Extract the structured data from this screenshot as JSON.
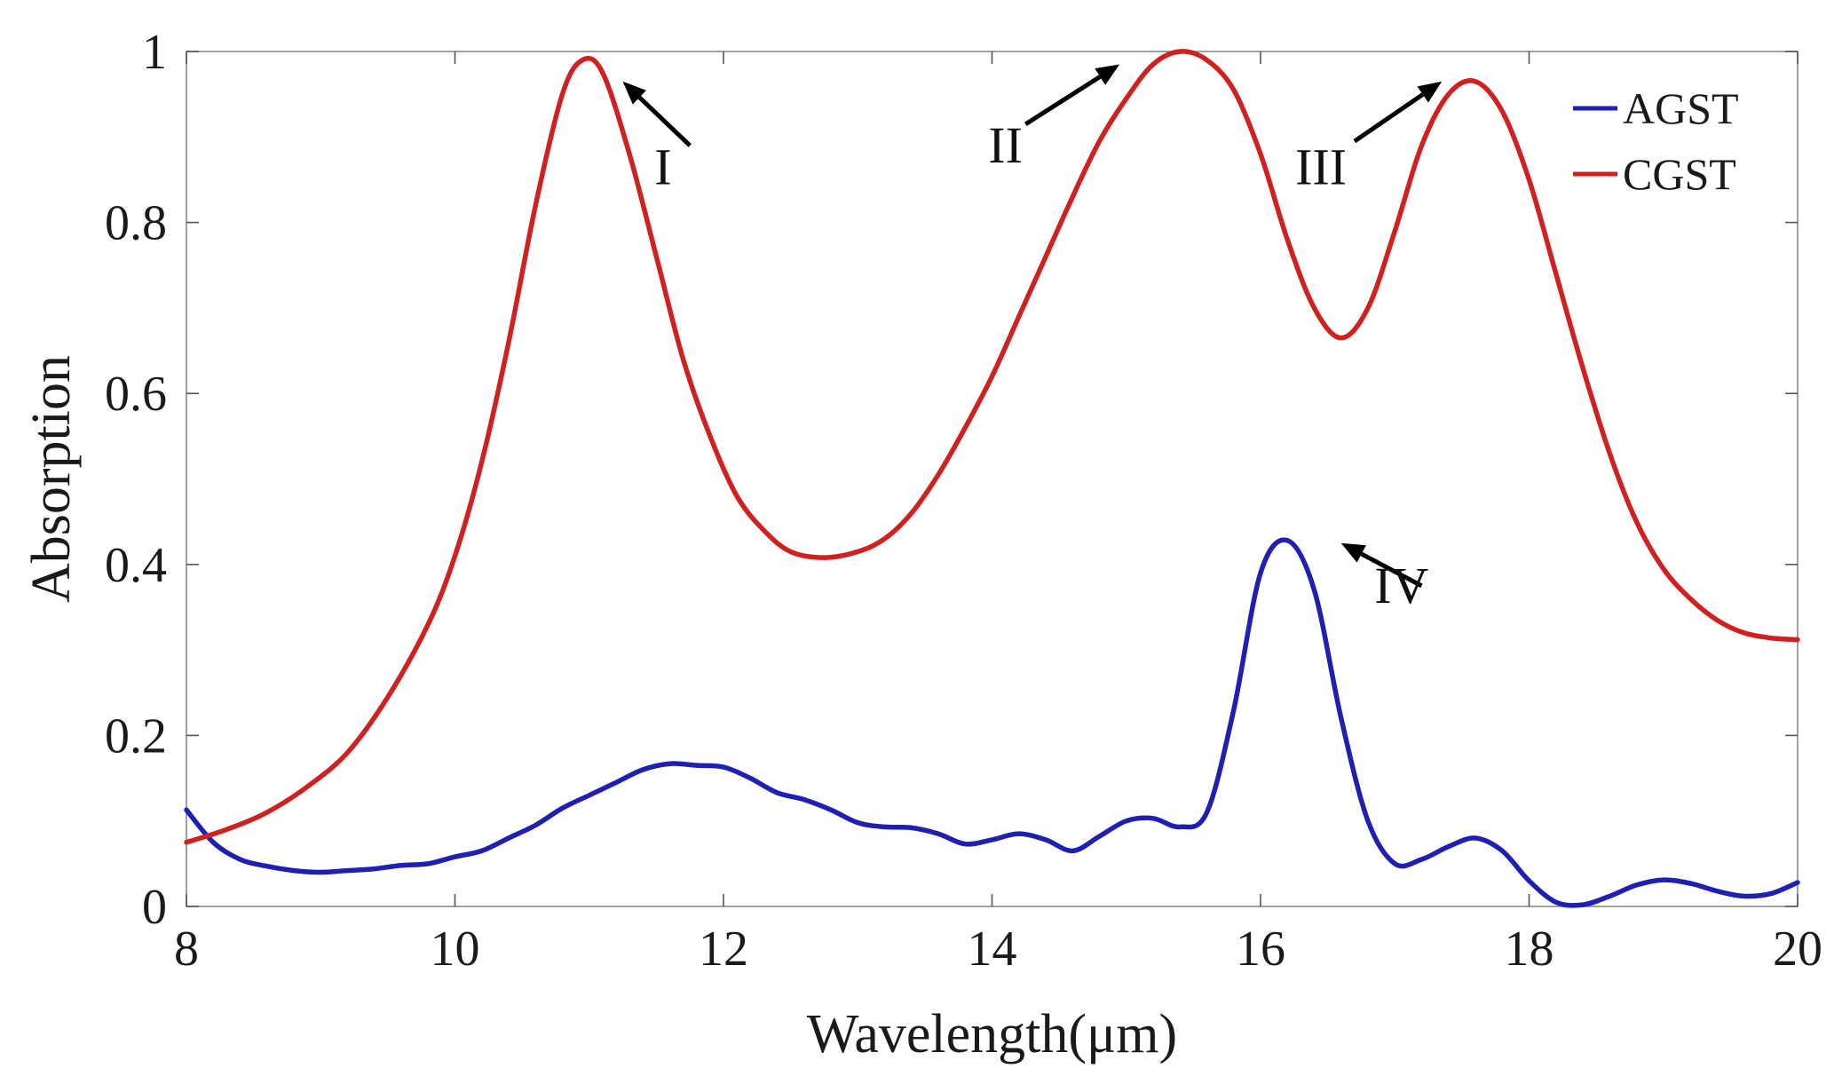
{
  "chart_data": {
    "type": "line",
    "title": "",
    "xlabel": "Wavelength(μm)",
    "ylabel": "Absorption",
    "xlim": [
      8,
      20
    ],
    "ylim": [
      0,
      1
    ],
    "x_ticks": [
      8,
      10,
      12,
      14,
      16,
      18,
      20
    ],
    "x_tick_labels": [
      "8",
      "10",
      "12",
      "14",
      "16",
      "18",
      "20"
    ],
    "y_ticks": [
      0,
      0.2,
      0.4,
      0.6,
      0.8,
      1
    ],
    "y_tick_labels": [
      "0",
      "0.2",
      "0.4",
      "0.6",
      "0.8",
      "1"
    ],
    "grid": false,
    "legend_position": "top-right",
    "series": [
      {
        "name": "AGST",
        "color": "#1f1fb4",
        "points": [
          [
            8.0,
            0.113
          ],
          [
            8.2,
            0.075
          ],
          [
            8.4,
            0.055
          ],
          [
            8.6,
            0.047
          ],
          [
            8.8,
            0.042
          ],
          [
            9.0,
            0.04
          ],
          [
            9.2,
            0.042
          ],
          [
            9.4,
            0.044
          ],
          [
            9.6,
            0.048
          ],
          [
            9.8,
            0.05
          ],
          [
            10.0,
            0.058
          ],
          [
            10.2,
            0.065
          ],
          [
            10.4,
            0.08
          ],
          [
            10.6,
            0.095
          ],
          [
            10.8,
            0.115
          ],
          [
            11.0,
            0.13
          ],
          [
            11.2,
            0.145
          ],
          [
            11.4,
            0.16
          ],
          [
            11.6,
            0.167
          ],
          [
            11.8,
            0.165
          ],
          [
            12.0,
            0.163
          ],
          [
            12.2,
            0.15
          ],
          [
            12.4,
            0.133
          ],
          [
            12.6,
            0.125
          ],
          [
            12.8,
            0.113
          ],
          [
            13.0,
            0.098
          ],
          [
            13.2,
            0.093
          ],
          [
            13.4,
            0.092
          ],
          [
            13.6,
            0.085
          ],
          [
            13.8,
            0.073
          ],
          [
            14.0,
            0.078
          ],
          [
            14.2,
            0.085
          ],
          [
            14.4,
            0.078
          ],
          [
            14.6,
            0.065
          ],
          [
            14.8,
            0.082
          ],
          [
            15.0,
            0.1
          ],
          [
            15.2,
            0.103
          ],
          [
            15.4,
            0.093
          ],
          [
            15.6,
            0.11
          ],
          [
            15.8,
            0.23
          ],
          [
            16.0,
            0.39
          ],
          [
            16.2,
            0.428
          ],
          [
            16.4,
            0.37
          ],
          [
            16.6,
            0.22
          ],
          [
            16.8,
            0.1
          ],
          [
            17.0,
            0.05
          ],
          [
            17.2,
            0.055
          ],
          [
            17.4,
            0.07
          ],
          [
            17.6,
            0.08
          ],
          [
            17.8,
            0.065
          ],
          [
            18.0,
            0.03
          ],
          [
            18.2,
            0.005
          ],
          [
            18.4,
            0.002
          ],
          [
            18.6,
            0.012
          ],
          [
            18.8,
            0.025
          ],
          [
            19.0,
            0.031
          ],
          [
            19.2,
            0.027
          ],
          [
            19.4,
            0.018
          ],
          [
            19.6,
            0.012
          ],
          [
            19.8,
            0.015
          ],
          [
            20.0,
            0.028
          ]
        ]
      },
      {
        "name": "CGST",
        "color": "#d02020",
        "points": [
          [
            8.0,
            0.075
          ],
          [
            8.3,
            0.09
          ],
          [
            8.6,
            0.11
          ],
          [
            8.9,
            0.14
          ],
          [
            9.2,
            0.18
          ],
          [
            9.5,
            0.245
          ],
          [
            9.8,
            0.33
          ],
          [
            10.0,
            0.41
          ],
          [
            10.2,
            0.52
          ],
          [
            10.4,
            0.66
          ],
          [
            10.6,
            0.82
          ],
          [
            10.8,
            0.95
          ],
          [
            10.95,
            0.99
          ],
          [
            11.1,
            0.975
          ],
          [
            11.3,
            0.88
          ],
          [
            11.5,
            0.76
          ],
          [
            11.7,
            0.64
          ],
          [
            11.9,
            0.55
          ],
          [
            12.1,
            0.48
          ],
          [
            12.3,
            0.44
          ],
          [
            12.5,
            0.415
          ],
          [
            12.75,
            0.408
          ],
          [
            13.0,
            0.415
          ],
          [
            13.2,
            0.43
          ],
          [
            13.4,
            0.46
          ],
          [
            13.6,
            0.505
          ],
          [
            13.8,
            0.56
          ],
          [
            14.0,
            0.62
          ],
          [
            14.2,
            0.69
          ],
          [
            14.4,
            0.76
          ],
          [
            14.6,
            0.83
          ],
          [
            14.8,
            0.895
          ],
          [
            15.0,
            0.945
          ],
          [
            15.2,
            0.985
          ],
          [
            15.4,
            1.0
          ],
          [
            15.6,
            0.99
          ],
          [
            15.8,
            0.955
          ],
          [
            16.0,
            0.88
          ],
          [
            16.2,
            0.78
          ],
          [
            16.4,
            0.7
          ],
          [
            16.6,
            0.665
          ],
          [
            16.8,
            0.7
          ],
          [
            17.0,
            0.79
          ],
          [
            17.2,
            0.89
          ],
          [
            17.4,
            0.95
          ],
          [
            17.6,
            0.965
          ],
          [
            17.8,
            0.93
          ],
          [
            18.0,
            0.85
          ],
          [
            18.2,
            0.74
          ],
          [
            18.4,
            0.63
          ],
          [
            18.6,
            0.53
          ],
          [
            18.8,
            0.45
          ],
          [
            19.0,
            0.395
          ],
          [
            19.2,
            0.36
          ],
          [
            19.4,
            0.335
          ],
          [
            19.6,
            0.32
          ],
          [
            19.8,
            0.314
          ],
          [
            20.0,
            0.312
          ]
        ]
      }
    ],
    "annotations": [
      {
        "label": "I",
        "series": "CGST",
        "text_at": [
          11.55,
          0.845
        ],
        "arrow_from": [
          11.75,
          0.89
        ],
        "arrow_to": [
          11.25,
          0.965
        ]
      },
      {
        "label": "II",
        "series": "CGST",
        "text_at": [
          14.1,
          0.87
        ],
        "arrow_from": [
          14.25,
          0.915
        ],
        "arrow_to": [
          14.95,
          0.985
        ]
      },
      {
        "label": "III",
        "series": "CGST",
        "text_at": [
          16.45,
          0.845
        ],
        "arrow_from": [
          16.7,
          0.895
        ],
        "arrow_to": [
          17.35,
          0.965
        ]
      },
      {
        "label": "IV",
        "series": "AGST",
        "text_at": [
          17.05,
          0.355
        ],
        "arrow_from": [
          17.2,
          0.375
        ],
        "arrow_to": [
          16.6,
          0.425
        ]
      }
    ]
  }
}
